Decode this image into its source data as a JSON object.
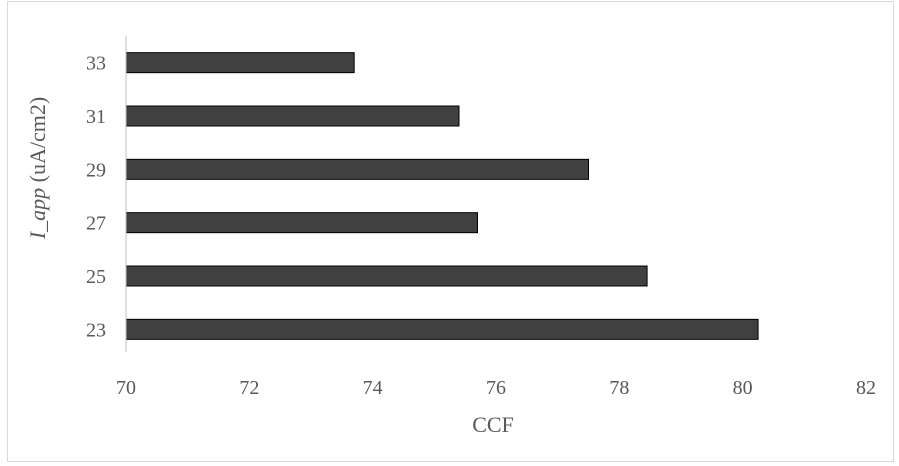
{
  "chart_data": {
    "type": "bar",
    "orientation": "horizontal",
    "categories": [
      "23",
      "25",
      "27",
      "29",
      "31",
      "33"
    ],
    "values": [
      80.25,
      78.45,
      75.7,
      77.5,
      75.4,
      73.7
    ],
    "xlabel": "CCF",
    "ylabel_italic": "I_app",
    "ylabel_rest": " (uA/cm2)",
    "xlim": [
      70,
      82
    ],
    "xticks": [
      70,
      72,
      74,
      76,
      78,
      80,
      82
    ],
    "grid": false,
    "legend": "none",
    "bar_color": "#404040",
    "bar_edge_color": "#000000"
  }
}
